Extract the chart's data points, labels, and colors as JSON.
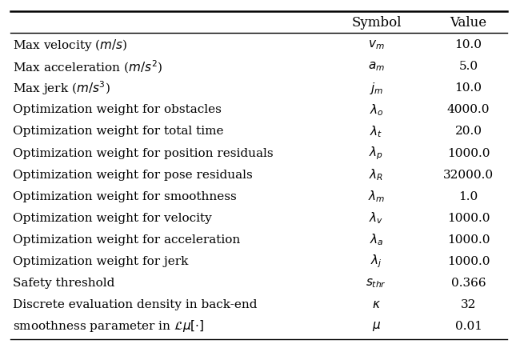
{
  "rows": [
    {
      "description": "Max velocity ($\\mathit{m/s}$)",
      "symbol": "$v_m$",
      "value": "10.0"
    },
    {
      "description": "Max acceleration ($\\mathit{m/s}^2$)",
      "symbol": "$a_m$",
      "value": "5.0"
    },
    {
      "description": "Max jerk ($\\mathit{m/s}^3$)",
      "symbol": "$j_m$",
      "value": "10.0"
    },
    {
      "description": "Optimization weight for obstacles",
      "symbol": "$\\lambda_o$",
      "value": "4000.0"
    },
    {
      "description": "Optimization weight for total time",
      "symbol": "$\\lambda_t$",
      "value": "20.0"
    },
    {
      "description": "Optimization weight for position residuals",
      "symbol": "$\\lambda_p$",
      "value": "1000.0"
    },
    {
      "description": "Optimization weight for pose residuals",
      "symbol": "$\\lambda_R$",
      "value": "32000.0"
    },
    {
      "description": "Optimization weight for smoothness",
      "symbol": "$\\lambda_m$",
      "value": "1.0"
    },
    {
      "description": "Optimization weight for velocity",
      "symbol": "$\\lambda_v$",
      "value": "1000.0"
    },
    {
      "description": "Optimization weight for acceleration",
      "symbol": "$\\lambda_a$",
      "value": "1000.0"
    },
    {
      "description": "Optimization weight for jerk",
      "symbol": "$\\lambda_j$",
      "value": "1000.0"
    },
    {
      "description": "Safety threshold",
      "symbol": "$s_{thr}$",
      "value": "0.366"
    },
    {
      "description": "Discrete evaluation density in back-end",
      "symbol": "$\\kappa$",
      "value": "32"
    },
    {
      "description": "smoothness parameter in $\\mathcal{L}\\mu[\\cdot]$",
      "symbol": "$\\mu$",
      "value": "0.01"
    }
  ],
  "col_headers": [
    "",
    "Symbol",
    "Value"
  ],
  "bg_color": "#ffffff",
  "text_color": "#000000",
  "font_size": 11.0,
  "header_font_size": 12.0
}
